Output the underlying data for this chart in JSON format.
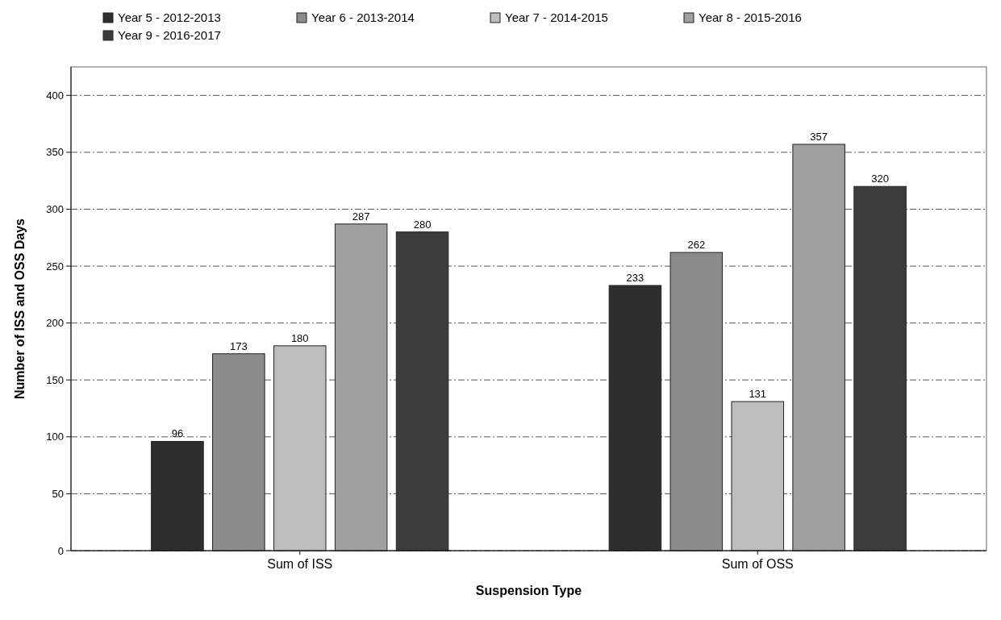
{
  "chart_data": {
    "type": "bar",
    "xlabel": "Suspension Type",
    "ylabel": "Number of ISS and OSS Days",
    "categories": [
      "Sum of ISS",
      "Sum of OSS"
    ],
    "series": [
      {
        "name": "Year 5 - 2012-2013",
        "color": "#2e2e2e",
        "values": [
          96,
          233
        ]
      },
      {
        "name": "Year 6 - 2013-2014",
        "color": "#8c8c8c",
        "values": [
          173,
          262
        ]
      },
      {
        "name": "Year 7 - 2014-2015",
        "color": "#bdbdbd",
        "values": [
          180,
          131
        ]
      },
      {
        "name": "Year 8 - 2015-2016",
        "color": "#a0a0a0",
        "values": [
          287,
          357
        ]
      },
      {
        "name": "Year 9 - 2016-2017",
        "color": "#3c3c3c",
        "values": [
          280,
          320
        ]
      }
    ],
    "ylim": [
      0,
      425
    ],
    "yticks": [
      0,
      50,
      100,
      150,
      200,
      250,
      300,
      350,
      400
    ],
    "grid": "y",
    "legend": "top left",
    "data_labels": true
  }
}
